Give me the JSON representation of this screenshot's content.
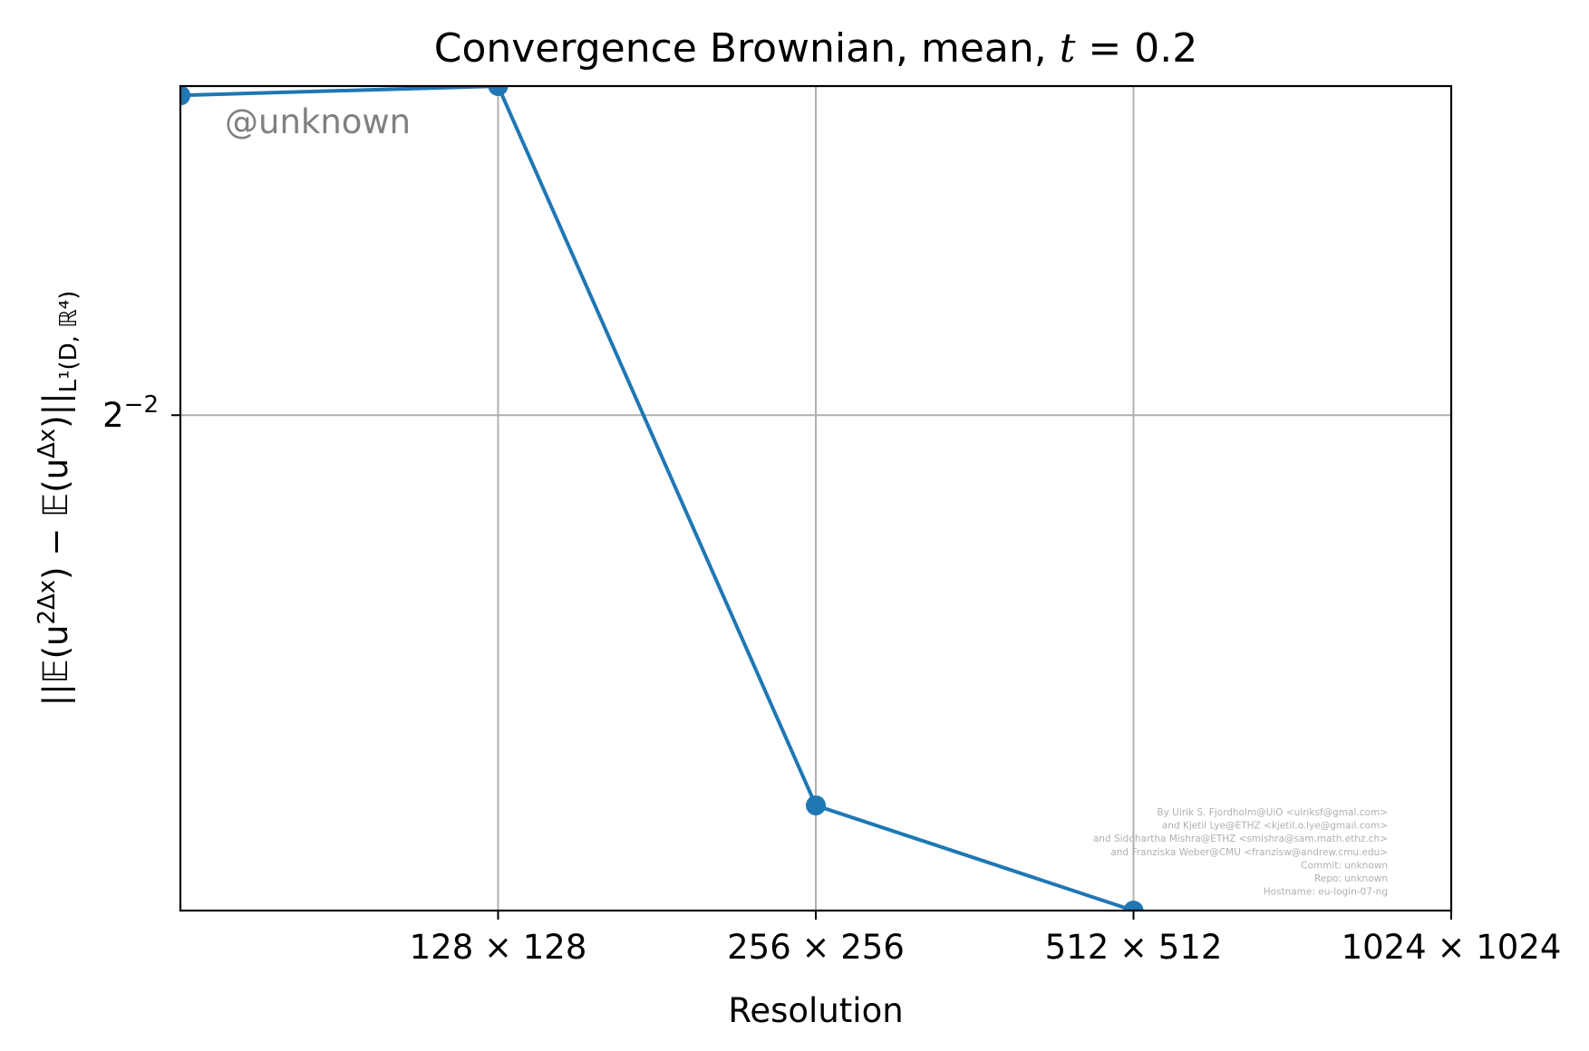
{
  "chart_data": {
    "type": "line",
    "title": "Convergence Brownian, mean, t = 0.2",
    "title_parts": {
      "prefix": "Convergence Brownian, mean, ",
      "var": "t",
      "rest": " = 0.2"
    },
    "xlabel": "Resolution",
    "ylabel": "||𝔼(u²ᐞˣ) − 𝔼(uᐞˣ)||L¹(D,ℝ⁴)",
    "ylabel_parts": {
      "main": "||𝔼(u",
      "sup1": "2Δx",
      "mid": ") − 𝔼(u",
      "sup2": "Δx",
      "end": ")||",
      "sub": "L¹(D, ℝ⁴)"
    },
    "x_scale": "log2",
    "y_scale": "log2",
    "x_tick_values": [
      128,
      256,
      512,
      1024
    ],
    "x_tick_labels": [
      "128 × 128",
      "256 × 256",
      "512 × 512",
      "1024 × 1024"
    ],
    "y_tick_values": [
      0.25
    ],
    "y_tick_labels": [
      {
        "base": "2",
        "exp": "−2"
      }
    ],
    "xlim": [
      64,
      1024
    ],
    "ylim": [
      0.1665,
      0.3275
    ],
    "grid": true,
    "series": [
      {
        "color": "#1f77b4",
        "marker": "circle",
        "x": [
          64,
          128,
          256,
          512
        ],
        "y": [
          0.325,
          0.3275,
          0.1815,
          0.1665
        ]
      }
    ],
    "watermark": "@unknown",
    "credits": [
      "By Ulrik S. Fjordholm@UiO <ulriksf@gmal.com>",
      "and Kjetil Lye@ETHZ <kjetil.o.lye@gmail.com>",
      "and Siddhartha Mishra@ETHZ <smishra@sam.math.ethz.ch>",
      "and Franziska Weber@CMU <franzisw@andrew.cmu.edu>",
      "Commit: unknown",
      "Repo: unknown",
      "Hostname: eu-login-07-ng"
    ]
  }
}
